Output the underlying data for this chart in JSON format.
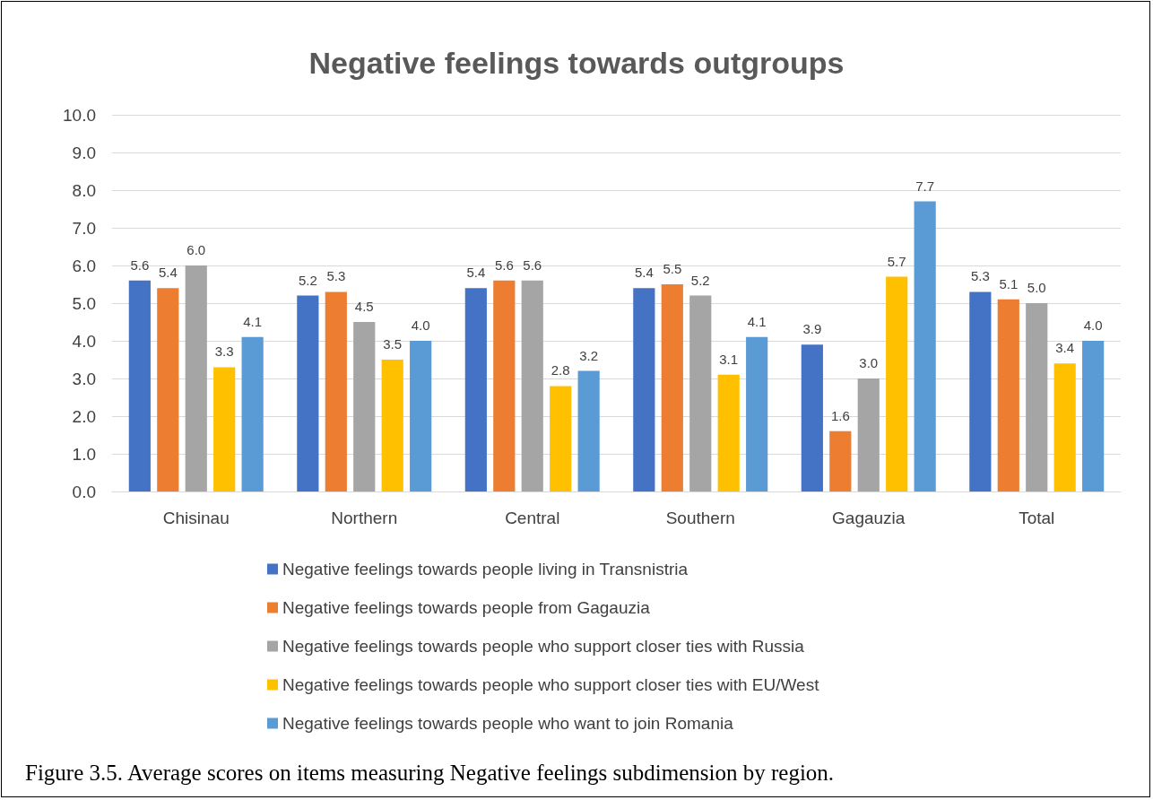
{
  "chart_data": {
    "type": "bar",
    "title": "Negative feelings towards outgroups",
    "categories": [
      "Chisinau",
      "Northern",
      "Central",
      "Southern",
      "Gagauzia",
      "Total"
    ],
    "series": [
      {
        "name": "Negative feelings towards people living in Transnistria",
        "color": "#4472c4",
        "values": [
          5.6,
          5.2,
          5.4,
          5.4,
          3.9,
          5.3
        ],
        "value_labels": [
          "5.6",
          "5.2",
          "5.4",
          "5.4",
          "3.9",
          "5.3"
        ]
      },
      {
        "name": "Negative feelings towards people from Gagauzia",
        "color": "#ed7d31",
        "values": [
          5.4,
          5.3,
          5.6,
          5.5,
          1.6,
          5.1
        ],
        "value_labels": [
          "5.4",
          "5.3",
          "5.6",
          "5.5",
          "1.6",
          "5.1"
        ]
      },
      {
        "name": "Negative feelings towards people who support closer ties with Russia",
        "color": "#a5a5a5",
        "values": [
          6.0,
          4.5,
          5.6,
          5.2,
          3.0,
          5.0
        ],
        "value_labels": [
          "6.0",
          "4.5",
          "5.6",
          "5.2",
          "3.0",
          "5.0"
        ]
      },
      {
        "name": "Negative feelings towards people who support closer ties with EU/West",
        "color": "#ffc000",
        "values": [
          3.3,
          3.5,
          2.8,
          3.1,
          5.7,
          3.4
        ],
        "value_labels": [
          "3.3",
          "3.5",
          "2.8",
          "3.1",
          "5.7",
          "3.4"
        ]
      },
      {
        "name": "Negative feelings towards people who want to join Romania",
        "color": "#5b9bd5",
        "values": [
          4.1,
          4.0,
          3.2,
          4.1,
          7.7,
          4.0
        ],
        "value_labels": [
          "4.1",
          "4.0",
          "3.2",
          "4.1",
          "7.7",
          "4.0"
        ]
      }
    ],
    "ylim": [
      0,
      10
    ],
    "yticks": [
      {
        "value": 0,
        "label": "0.0"
      },
      {
        "value": 1,
        "label": "1.0"
      },
      {
        "value": 2,
        "label": "2.0"
      },
      {
        "value": 3,
        "label": "3.0"
      },
      {
        "value": 4,
        "label": "4.0"
      },
      {
        "value": 5,
        "label": "5.0"
      },
      {
        "value": 6,
        "label": "6.0"
      },
      {
        "value": 7,
        "label": "7.0"
      },
      {
        "value": 8,
        "label": "8.0"
      },
      {
        "value": 9,
        "label": "9.0"
      },
      {
        "value": 10,
        "label": "10.0"
      }
    ],
    "grid": "y",
    "legend": "bottom",
    "annotations": [
      "Figure 3.5. Average scores on items measuring Negative feelings subdimension by region."
    ]
  }
}
